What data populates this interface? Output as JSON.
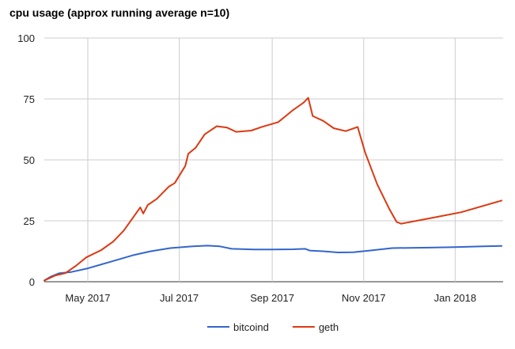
{
  "chart_data": {
    "type": "line",
    "title": "cpu usage (approx running average n=10)",
    "xlabel": "",
    "ylabel": "",
    "ylim": [
      0,
      100
    ],
    "y_ticks": [
      "0",
      "25",
      "50",
      "75",
      "100"
    ],
    "x_ticks": [
      {
        "date": "2017-05-01",
        "label": "May 2017"
      },
      {
        "date": "2017-07-01",
        "label": "Jul 2017"
      },
      {
        "date": "2017-09-01",
        "label": "Sep 2017"
      },
      {
        "date": "2017-11-01",
        "label": "Nov 2017"
      },
      {
        "date": "2018-01-01",
        "label": "Jan 2018"
      }
    ],
    "xlim": [
      "2017-04-02",
      "2018-02-02"
    ],
    "grid": true,
    "legend_position": "bottom",
    "series": [
      {
        "name": "bitcoind",
        "color": "#3366cc",
        "points": [
          [
            "2017-04-02",
            0.5
          ],
          [
            "2017-04-06",
            2.0
          ],
          [
            "2017-04-12",
            3.5
          ],
          [
            "2017-04-20",
            4.0
          ],
          [
            "2017-05-01",
            5.5
          ],
          [
            "2017-05-15",
            8.0
          ],
          [
            "2017-06-01",
            11.0
          ],
          [
            "2017-06-12",
            12.5
          ],
          [
            "2017-06-25",
            13.8
          ],
          [
            "2017-07-10",
            14.5
          ],
          [
            "2017-07-20",
            14.8
          ],
          [
            "2017-07-28",
            14.5
          ],
          [
            "2017-08-05",
            13.5
          ],
          [
            "2017-08-20",
            13.2
          ],
          [
            "2017-09-01",
            13.2
          ],
          [
            "2017-09-15",
            13.3
          ],
          [
            "2017-09-23",
            13.5
          ],
          [
            "2017-09-26",
            12.8
          ],
          [
            "2017-10-05",
            12.5
          ],
          [
            "2017-10-15",
            12.0
          ],
          [
            "2017-10-25",
            12.1
          ],
          [
            "2017-11-05",
            12.8
          ],
          [
            "2017-11-20",
            13.8
          ],
          [
            "2017-12-01",
            13.9
          ],
          [
            "2017-12-15",
            14.0
          ],
          [
            "2018-01-01",
            14.2
          ],
          [
            "2018-01-20",
            14.5
          ],
          [
            "2018-02-01",
            14.7
          ]
        ]
      },
      {
        "name": "geth",
        "color": "#dc3912",
        "points": [
          [
            "2017-04-02",
            0.5
          ],
          [
            "2017-04-09",
            2.5
          ],
          [
            "2017-04-16",
            3.5
          ],
          [
            "2017-04-23",
            6.5
          ],
          [
            "2017-04-30",
            10.0
          ],
          [
            "2017-05-10",
            13.0
          ],
          [
            "2017-05-18",
            16.5
          ],
          [
            "2017-05-25",
            21.0
          ],
          [
            "2017-06-01",
            27.0
          ],
          [
            "2017-06-05",
            30.5
          ],
          [
            "2017-06-07",
            28.0
          ],
          [
            "2017-06-10",
            31.5
          ],
          [
            "2017-06-16",
            34.0
          ],
          [
            "2017-06-24",
            39.0
          ],
          [
            "2017-06-28",
            40.5
          ],
          [
            "2017-07-05",
            47.5
          ],
          [
            "2017-07-07",
            52.5
          ],
          [
            "2017-07-12",
            55.0
          ],
          [
            "2017-07-18",
            60.5
          ],
          [
            "2017-07-26",
            63.8
          ],
          [
            "2017-08-02",
            63.2
          ],
          [
            "2017-08-08",
            61.5
          ],
          [
            "2017-08-18",
            62.0
          ],
          [
            "2017-08-25",
            63.5
          ],
          [
            "2017-09-05",
            65.5
          ],
          [
            "2017-09-10",
            68.0
          ],
          [
            "2017-09-15",
            70.5
          ],
          [
            "2017-09-22",
            73.5
          ],
          [
            "2017-09-25",
            75.5
          ],
          [
            "2017-09-28",
            68.0
          ],
          [
            "2017-10-05",
            66.0
          ],
          [
            "2017-10-12",
            63.0
          ],
          [
            "2017-10-20",
            61.8
          ],
          [
            "2017-10-28",
            63.5
          ],
          [
            "2017-11-02",
            53.0
          ],
          [
            "2017-11-10",
            40.0
          ],
          [
            "2017-11-18",
            30.0
          ],
          [
            "2017-11-23",
            24.5
          ],
          [
            "2017-11-26",
            23.8
          ],
          [
            "2017-12-15",
            26.0
          ],
          [
            "2018-01-05",
            28.5
          ],
          [
            "2018-02-01",
            33.3
          ]
        ]
      }
    ]
  }
}
